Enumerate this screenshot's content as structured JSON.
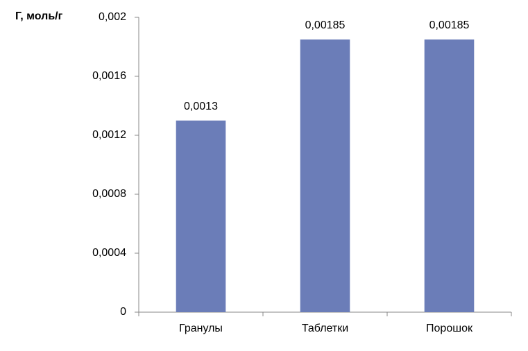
{
  "chart_data": {
    "type": "bar",
    "ylabel": "Г, моль/г",
    "categories": [
      "Гранулы",
      "Таблетки",
      "Порошок"
    ],
    "values": [
      0.0013,
      0.00185,
      0.00185
    ],
    "value_labels": [
      "0,0013",
      "0,00185",
      "0,00185"
    ],
    "color": "#6b7db8",
    "ylim": [
      0,
      0.002
    ],
    "yticks": [
      0,
      {
        "value": 0.0004,
        "label": "0,0004"
      },
      {
        "value": 0.0008,
        "label": "0,0008"
      },
      {
        "value": 0.0012,
        "label": "0,0012"
      },
      {
        "value": 0.0016,
        "label": "0,0016"
      },
      {
        "value": 0.002,
        "label": "0,002"
      }
    ],
    "grid": false
  }
}
